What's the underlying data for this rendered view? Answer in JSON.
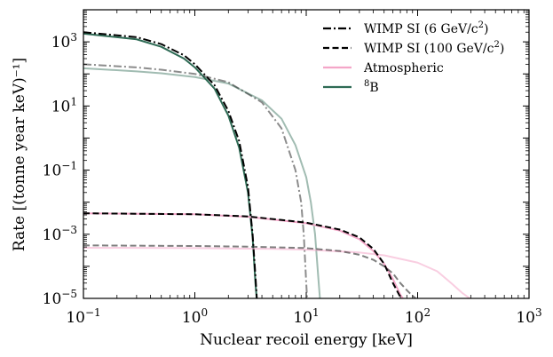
{
  "chart_data": {
    "type": "line",
    "xlabel": "Nuclear recoil energy [keV]",
    "ylabel": "Rate [(tonne year keV)⁻¹]",
    "xscale": "log",
    "yscale": "log",
    "xlim": [
      0.1,
      1000
    ],
    "ylim": [
      1e-05,
      10000
    ],
    "grid": false,
    "legend_position": "top-right",
    "x_ticks": [
      {
        "value": 0.1,
        "base": "10",
        "exp": "−1"
      },
      {
        "value": 1,
        "base": "10",
        "exp": "0"
      },
      {
        "value": 10,
        "base": "10",
        "exp": "1"
      },
      {
        "value": 100,
        "base": "10",
        "exp": "2"
      },
      {
        "value": 1000,
        "base": "10",
        "exp": "3"
      }
    ],
    "y_ticks": [
      {
        "value": 1e-05,
        "base": "10",
        "exp": "−5"
      },
      {
        "value": 0.001,
        "base": "10",
        "exp": "−3"
      },
      {
        "value": 0.1,
        "base": "10",
        "exp": "−1"
      },
      {
        "value": 10,
        "base": "10",
        "exp": "1"
      },
      {
        "value": 1000,
        "base": "10",
        "exp": "3"
      }
    ],
    "legend": [
      {
        "label_main": "WIMP SI (6 GeV/c",
        "label_sup": "2",
        "label_tail": ")",
        "color": "#000000",
        "dash": "dashdot"
      },
      {
        "label_main": "WIMP SI (100 GeV/c",
        "label_sup": "2",
        "label_tail": ")",
        "color": "#000000",
        "dash": "dashed"
      },
      {
        "label_main": "Atmospheric",
        "label_sup": "",
        "label_tail": "",
        "color": "#f4a6c8",
        "dash": "solid"
      },
      {
        "label_main": "",
        "label_sup": "8",
        "label_tail": "B",
        "color": "#2e6b55",
        "dash": "solid"
      }
    ],
    "series": [
      {
        "id": "b8-dark",
        "color": "#2e6b55",
        "opacity": 1.0,
        "dash": "solid",
        "x": [
          0.1,
          0.3,
          0.5,
          0.8,
          1.0,
          1.5,
          2.0,
          2.5,
          3.0,
          3.3,
          3.5,
          3.6
        ],
        "y": [
          1800,
          1200,
          700,
          300,
          160,
          35,
          5,
          0.5,
          0.02,
          0.0008,
          3e-05,
          9e-06
        ]
      },
      {
        "id": "b8-light",
        "color": "#2e6b55",
        "opacity": 0.45,
        "dash": "solid",
        "x": [
          0.1,
          0.3,
          0.5,
          1.0,
          2.0,
          4.0,
          6.0,
          8.0,
          10.0,
          11.0,
          12.0,
          12.8,
          13.3
        ],
        "y": [
          150,
          120,
          105,
          80,
          50,
          15,
          4,
          0.6,
          0.06,
          0.01,
          0.001,
          5e-05,
          9e-06
        ]
      },
      {
        "id": "wimp6-dark",
        "color": "#000000",
        "opacity": 1.0,
        "dash": "dashdot",
        "x": [
          0.1,
          0.3,
          0.5,
          0.8,
          1.0,
          1.5,
          2.0,
          2.5,
          3.0,
          3.3,
          3.5,
          3.6,
          3.7
        ],
        "y": [
          2000,
          1400,
          850,
          380,
          200,
          45,
          7,
          0.8,
          0.03,
          0.001,
          5e-05,
          1e-05,
          9e-06
        ]
      },
      {
        "id": "wimp6-light",
        "color": "#000000",
        "opacity": 0.45,
        "dash": "dashdot",
        "x": [
          0.1,
          0.3,
          0.5,
          1.0,
          2.0,
          4.0,
          6.0,
          8.0,
          9.0,
          9.5,
          10.0,
          10.2
        ],
        "y": [
          200,
          160,
          135,
          100,
          55,
          13,
          2,
          0.1,
          0.01,
          0.001,
          3e-05,
          9e-06
        ]
      },
      {
        "id": "atm-dark",
        "color": "#f4a6c8",
        "opacity": 1.0,
        "dash": "solid",
        "x": [
          0.1,
          1,
          3,
          10,
          20,
          30,
          40,
          50,
          60,
          70,
          75
        ],
        "y": [
          0.0045,
          0.0042,
          0.0035,
          0.0022,
          0.0013,
          0.0007,
          0.0003,
          0.00012,
          4e-05,
          1.3e-05,
          9e-06
        ]
      },
      {
        "id": "atm-light",
        "color": "#f4a6c8",
        "opacity": 0.55,
        "dash": "solid",
        "x": [
          0.1,
          1,
          5,
          10,
          30,
          50,
          100,
          150,
          200,
          250,
          300,
          320
        ],
        "y": [
          0.00038,
          0.00037,
          0.00035,
          0.00033,
          0.00027,
          0.00022,
          0.00013,
          7e-05,
          3e-05,
          1.5e-05,
          9.5e-06,
          9e-06
        ]
      },
      {
        "id": "wimp100-dark",
        "color": "#000000",
        "opacity": 1.0,
        "dash": "dashed",
        "x": [
          0.1,
          1,
          3,
          10,
          20,
          30,
          40,
          50,
          60,
          70,
          72
        ],
        "y": [
          0.0045,
          0.0042,
          0.0036,
          0.0023,
          0.0014,
          0.0008,
          0.00035,
          0.00012,
          3e-05,
          1.1e-05,
          9e-06
        ]
      },
      {
        "id": "wimp100-light",
        "color": "#000000",
        "opacity": 0.5,
        "dash": "dashed",
        "x": [
          0.1,
          1,
          3,
          10,
          20,
          30,
          40,
          50,
          60,
          70,
          80,
          90,
          100
        ],
        "y": [
          0.00045,
          0.00043,
          0.00041,
          0.00037,
          0.0003,
          0.00023,
          0.00016,
          0.0001,
          6e-05,
          3e-05,
          1.8e-05,
          1.2e-05,
          9e-06
        ]
      }
    ]
  }
}
